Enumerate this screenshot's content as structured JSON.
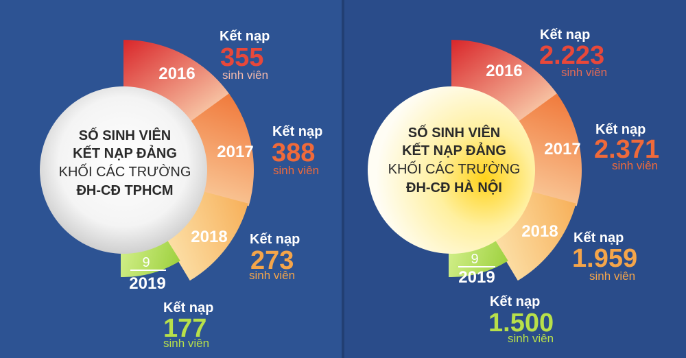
{
  "colors": {
    "left_bg": "#2d5393",
    "right_bg": "#2a4c8a",
    "divider": "#223f73",
    "white": "#ffffff",
    "circle_text": "#2a2a2a",
    "seg_2016": "#e0342b",
    "seg_2017": "#f07a3c",
    "seg_2018": "#f7b05a",
    "seg_2019": "#a8d84a",
    "label_2016": "#e8483a",
    "label_2017": "#f06a3a",
    "label_2018": "#f5a54a",
    "label_2019": "#b8e04a",
    "unit_2016_left": "#f2b9ac",
    "unit_2016_right": "#e26a56"
  },
  "chart_data": [
    {
      "type": "pie",
      "title_lines": [
        "SỐ SINH VIÊN",
        "KẾT NẠP ĐẢNG",
        "KHỐI CÁC TRƯỜNG",
        "ĐH-CĐ TPHCM"
      ],
      "categories": [
        "2016",
        "2017",
        "2018",
        "2019"
      ],
      "category_prefix": [
        "",
        "",
        "",
        "9"
      ],
      "values": [
        355,
        388,
        273,
        177
      ],
      "value_labels": [
        "355",
        "388",
        "273",
        "177"
      ],
      "value_prefix": "Kết nạp",
      "value_unit": "sinh viên"
    },
    {
      "type": "pie",
      "title_lines": [
        "SỐ SINH VIÊN",
        "KẾT NẠP ĐẢNG",
        "KHỐI CÁC TRƯỜNG",
        "ĐH-CĐ HÀ NỘI"
      ],
      "categories": [
        "2016",
        "2017",
        "2018",
        "2019"
      ],
      "category_prefix": [
        "",
        "",
        "",
        "9"
      ],
      "values": [
        2223,
        2371,
        1959,
        1500
      ],
      "value_labels": [
        "2.223",
        "2.371",
        "1.959",
        "1.500"
      ],
      "value_prefix": "Kết nạp",
      "value_unit": "sinh viên"
    }
  ]
}
